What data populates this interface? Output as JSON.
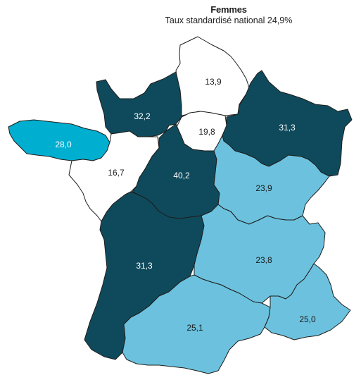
{
  "header": {
    "title": "Femmes",
    "subtitle": "Taux standardisé national 24,9%"
  },
  "colors": {
    "dark": "#0f4a5c",
    "medium": "#00aed0",
    "light": "#6cc2de",
    "white": "#ffffff",
    "border": "#1d1d1b"
  },
  "regions": [
    {
      "id": "hauts-de-france",
      "value": "13,9",
      "class": "white"
    },
    {
      "id": "normandie",
      "value": "32,2",
      "class": "dark"
    },
    {
      "id": "ile-de-france",
      "value": "19,8",
      "class": "white"
    },
    {
      "id": "grand-est",
      "value": "31,3",
      "class": "dark"
    },
    {
      "id": "bretagne",
      "value": "28,0",
      "class": "medium"
    },
    {
      "id": "pays-de-la-loire",
      "value": "16,7",
      "class": "white"
    },
    {
      "id": "centre-val-de-loire",
      "value": "40,2",
      "class": "dark"
    },
    {
      "id": "bourgogne-franche-comte",
      "value": "23,9",
      "class": "light"
    },
    {
      "id": "nouvelle-aquitaine",
      "value": "31,3",
      "class": "dark"
    },
    {
      "id": "auvergne-rhone-alpes",
      "value": "23,8",
      "class": "light"
    },
    {
      "id": "occitanie",
      "value": "25,1",
      "class": "light"
    },
    {
      "id": "provence-alpes-cote-d-azur",
      "value": "25,0",
      "class": "light"
    }
  ]
}
